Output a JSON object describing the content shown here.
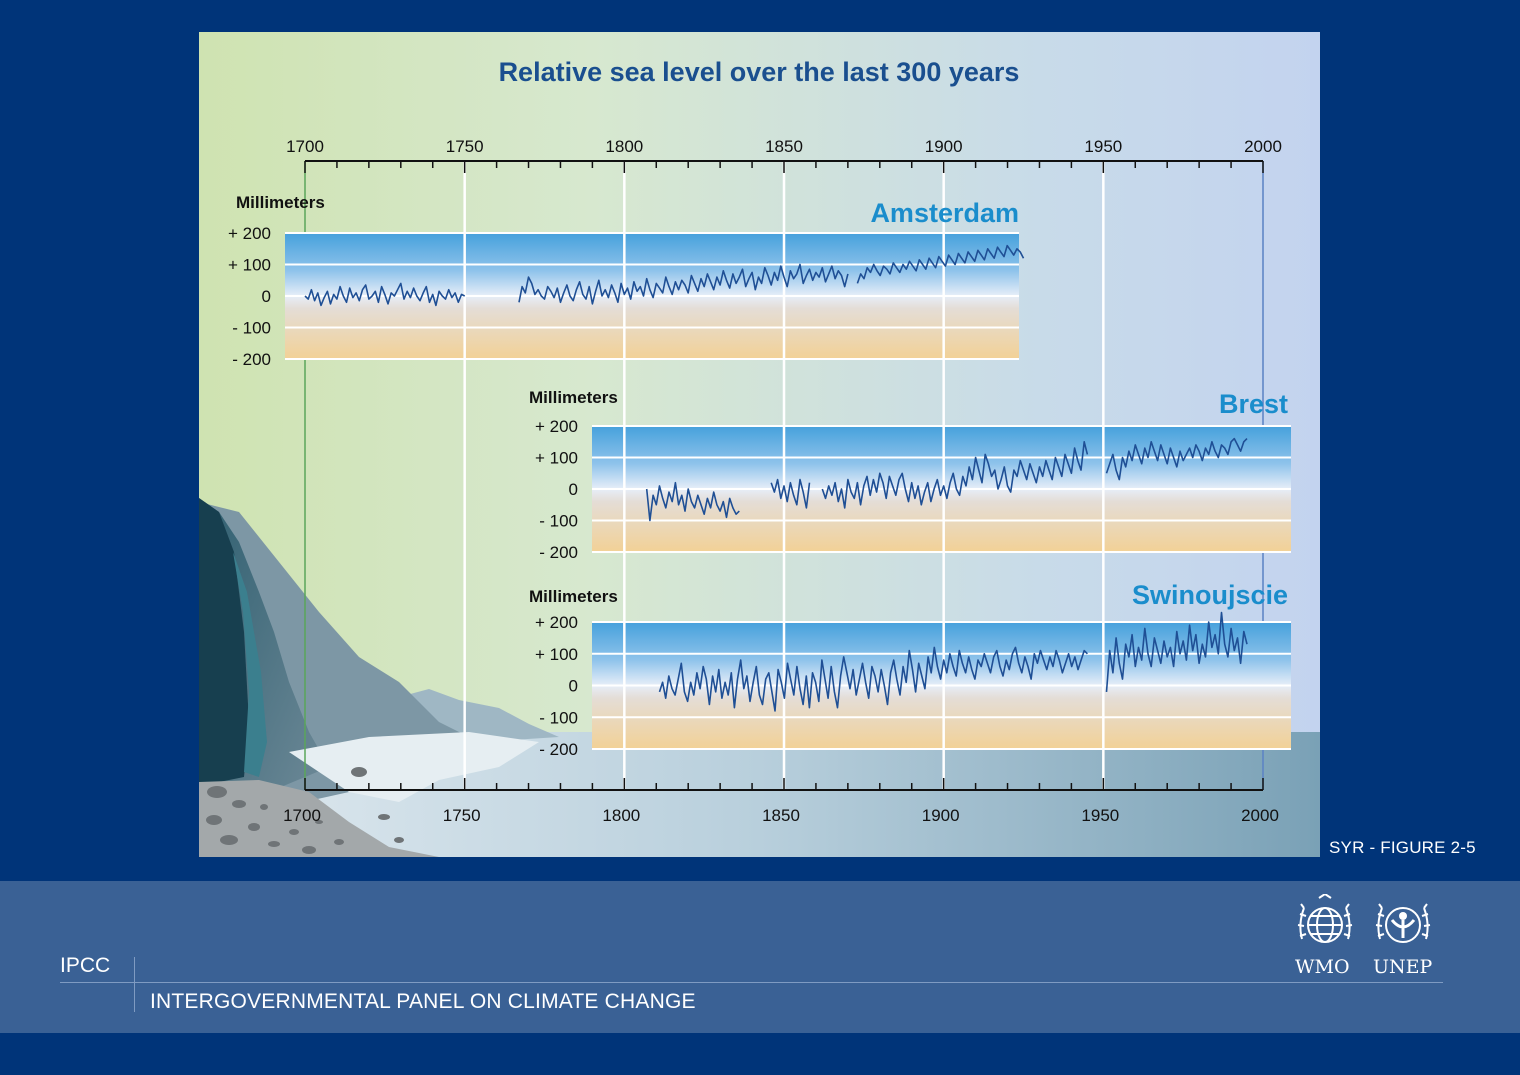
{
  "chart_data": {
    "type": "line",
    "title": "Relative sea level over the last 300 years",
    "xlim": [
      1700,
      2000
    ],
    "x_ticks": [
      "1700",
      "1750",
      "1800",
      "1850",
      "1900",
      "1950",
      "2000"
    ],
    "ylabel": "Millimeters",
    "ylim": [
      -200,
      200
    ],
    "y_ticks": [
      "+ 200",
      "+ 100",
      "0",
      "- 100",
      "- 200"
    ],
    "grid": true,
    "series": [
      {
        "name": "Amsterdam",
        "segments": [
          {
            "x_start": 1700,
            "x_end": 1750,
            "values": [
              0,
              -10,
              20,
              -15,
              10,
              -30,
              -5,
              15,
              -25,
              5,
              -10,
              30,
              0,
              -20,
              25,
              -5,
              10,
              -15,
              20,
              35,
              -10,
              0,
              15,
              -20,
              30,
              5,
              -25,
              10,
              0,
              20,
              40,
              -10,
              15,
              -5,
              25,
              0,
              -15,
              10,
              30,
              -20,
              5,
              -30,
              15,
              0,
              -10,
              20,
              -5,
              10,
              -20,
              5,
              0
            ]
          },
          {
            "x_start": 1767,
            "x_end": 1870,
            "values": [
              -20,
              30,
              10,
              60,
              40,
              5,
              20,
              0,
              -10,
              30,
              15,
              -5,
              25,
              -20,
              10,
              35,
              0,
              -15,
              20,
              45,
              5,
              -10,
              30,
              -25,
              15,
              50,
              0,
              20,
              -5,
              35,
              10,
              -20,
              40,
              5,
              25,
              -10,
              45,
              15,
              30,
              0,
              55,
              20,
              -5,
              40,
              25,
              10,
              60,
              30,
              5,
              45,
              20,
              50,
              35,
              10,
              65,
              40,
              15,
              55,
              30,
              70,
              45,
              20,
              60,
              35,
              80,
              50,
              25,
              70,
              40,
              60,
              85,
              30,
              55,
              75,
              20,
              60,
              40,
              90,
              65,
              35,
              75,
              50,
              95,
              60,
              30,
              80,
              55,
              70,
              100,
              40,
              65,
              85,
              50,
              75,
              60,
              90,
              45,
              70,
              95,
              55,
              80,
              65,
              30,
              70
            ]
          },
          {
            "x_start": 1873,
            "x_end": 1925,
            "values": [
              40,
              70,
              55,
              90,
              75,
              100,
              80,
              65,
              95,
              85,
              70,
              105,
              90,
              75,
              100,
              85,
              110,
              95,
              80,
              115,
              100,
              85,
              120,
              105,
              90,
              125,
              110,
              95,
              130,
              115,
              100,
              135,
              120,
              105,
              140,
              125,
              110,
              145,
              130,
              115,
              150,
              135,
              120,
              155,
              140,
              125,
              160,
              145,
              130,
              150,
              140,
              120
            ]
          }
        ]
      },
      {
        "name": "Brest",
        "segments": [
          {
            "x_start": 1807,
            "x_end": 1836,
            "values": [
              0,
              -100,
              -20,
              -50,
              10,
              -30,
              -60,
              -10,
              -40,
              20,
              -50,
              -20,
              -70,
              0,
              -40,
              -60,
              -20,
              -50,
              -80,
              -30,
              -60,
              -10,
              -50,
              -70,
              -40,
              -90,
              -30,
              -60,
              -80,
              -70
            ]
          },
          {
            "x_start": 1846,
            "x_end": 1858,
            "values": [
              20,
              -10,
              30,
              -30,
              10,
              -40,
              20,
              -20,
              -50,
              30,
              -10,
              -60,
              20
            ]
          },
          {
            "x_start": 1862,
            "x_end": 1945,
            "values": [
              0,
              -30,
              10,
              -20,
              20,
              -40,
              0,
              -60,
              30,
              -10,
              -30,
              20,
              -50,
              10,
              40,
              -20,
              30,
              -10,
              50,
              20,
              -30,
              40,
              10,
              -20,
              30,
              50,
              0,
              -40,
              20,
              -30,
              10,
              -50,
              -10,
              20,
              -40,
              0,
              30,
              -20,
              10,
              -30,
              20,
              50,
              0,
              -20,
              40,
              10,
              70,
              30,
              100,
              60,
              20,
              110,
              80,
              40,
              60,
              0,
              30,
              70,
              10,
              -10,
              60,
              40,
              90,
              60,
              30,
              80,
              50,
              20,
              70,
              40,
              90,
              60,
              30,
              100,
              70,
              40,
              110,
              80,
              50,
              130,
              90,
              60,
              150,
              110
            ]
          },
          {
            "x_start": 1951,
            "x_end": 1995,
            "values": [
              50,
              80,
              110,
              60,
              30,
              100,
              70,
              120,
              90,
              140,
              110,
              80,
              130,
              100,
              150,
              120,
              90,
              140,
              110,
              80,
              130,
              100,
              70,
              120,
              90,
              110,
              130,
              100,
              140,
              120,
              90,
              130,
              110,
              150,
              120,
              100,
              140,
              130,
              110,
              150,
              160,
              140,
              120,
              150,
              160
            ]
          }
        ]
      },
      {
        "name": "Swinoujscie",
        "segments": [
          {
            "x_start": 1811,
            "x_end": 1945,
            "values": [
              -20,
              10,
              -40,
              30,
              -10,
              -30,
              20,
              70,
              -20,
              -50,
              10,
              -30,
              40,
              -10,
              60,
              20,
              -60,
              30,
              -20,
              50,
              -40,
              10,
              -30,
              40,
              -70,
              20,
              80,
              -10,
              30,
              -50,
              10,
              60,
              -30,
              -60,
              20,
              40,
              -20,
              -80,
              50,
              10,
              -40,
              70,
              20,
              -30,
              60,
              -10,
              -60,
              30,
              -70,
              40,
              10,
              -50,
              80,
              20,
              -40,
              60,
              -20,
              -70,
              30,
              90,
              40,
              -10,
              50,
              -30,
              20,
              70,
              10,
              -40,
              60,
              30,
              -20,
              50,
              0,
              -60,
              40,
              80,
              20,
              -30,
              60,
              10,
              110,
              50,
              -20,
              70,
              30,
              -10,
              90,
              40,
              120,
              60,
              20,
              80,
              40,
              100,
              60,
              30,
              110,
              70,
              40,
              90,
              50,
              20,
              80,
              60,
              100,
              70,
              40,
              90,
              110,
              60,
              30,
              80,
              50,
              100,
              120,
              70,
              40,
              90,
              60,
              20,
              100,
              70,
              110,
              80,
              50,
              90,
              60,
              110,
              80,
              40,
              70,
              100,
              60,
              90,
              50,
              80,
              110,
              100
            ]
          },
          {
            "x_start": 1951,
            "x_end": 1995,
            "values": [
              -20,
              110,
              40,
              150,
              70,
              20,
              130,
              90,
              160,
              60,
              120,
              80,
              180,
              100,
              60,
              150,
              110,
              70,
              140,
              90,
              120,
              60,
              170,
              100,
              140,
              80,
              190,
              110,
              160,
              70,
              130,
              90,
              200,
              120,
              160,
              100,
              230,
              130,
              90,
              180,
              110,
              150,
              70,
              170,
              130
            ]
          }
        ]
      }
    ]
  },
  "figure_label": "SYR - FIGURE 2-5",
  "footer": {
    "abbr": "IPCC",
    "full_name": "INTERGOVERNMENTAL PANEL ON CLIMATE CHANGE",
    "logos": [
      "WMO",
      "UNEP"
    ]
  },
  "colors": {
    "background": "#003479",
    "footer": "#3a6195",
    "line": "#1f4f95",
    "station_label": "#1a8dcc",
    "title": "#1a4f8f"
  }
}
